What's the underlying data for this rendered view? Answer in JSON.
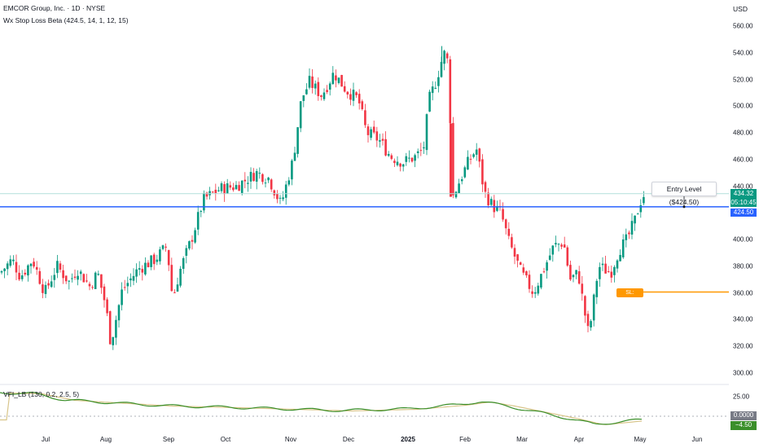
{
  "header": {
    "title": "EMCOR Group, Inc. · 1D · NYSE",
    "indicator": "Wx Stop Loss Beta (424.5, 14, 1, 12, 15)",
    "currency": "USD"
  },
  "price_axis": {
    "ticks": [
      "560.00",
      "540.00",
      "520.00",
      "500.00",
      "480.00",
      "460.00",
      "440.00",
      "400.00",
      "380.00",
      "360.00",
      "340.00",
      "320.00",
      "300.00"
    ]
  },
  "time_axis": {
    "labels": [
      "Jul",
      "Aug",
      "Sep",
      "Oct",
      "Nov",
      "Dec",
      "2025",
      "Feb",
      "Mar",
      "Apr",
      "May",
      "Jun"
    ]
  },
  "price_tags": {
    "last_price": "434.32",
    "countdown": "05:10:45",
    "entry": "424.50",
    "stop_loss": "SL: 360.63"
  },
  "annotation": {
    "entry_label": "Entry  Level ($424.50)"
  },
  "vfi": {
    "label": "VFI_LB (130, 0.2, 2.5, 5)",
    "ticks": [
      "25.00"
    ],
    "value": "0.0000",
    "signal": "−4.50"
  },
  "colors": {
    "up": "#089981",
    "down": "#f23645",
    "entry_line": "#2962ff",
    "stop_line": "#ff9800",
    "last_line": "#b2dfdb",
    "vfi_line": "#3b8f2a",
    "vfi_signal": "#d8c58a"
  },
  "chart_data": {
    "type": "candlestick",
    "ylim": [
      295,
      565
    ],
    "levels": {
      "entry": 424.5,
      "stop_loss": 360.63,
      "last": 434.32
    },
    "key_points": [
      {
        "period": "late Jun",
        "price": 375
      },
      {
        "period": "Aug low",
        "price": 320
      },
      {
        "period": "Sep",
        "price": 352
      },
      {
        "period": "Oct",
        "price": 448
      },
      {
        "period": "Nov high",
        "price": 530
      },
      {
        "period": "Dec",
        "price": 470
      },
      {
        "period": "2025 high",
        "price": 544
      },
      {
        "period": "Jan drop",
        "price": 430
      },
      {
        "period": "Feb",
        "price": 465
      },
      {
        "period": "Mar",
        "price": 360
      },
      {
        "period": "Apr low",
        "price": 322
      },
      {
        "period": "May",
        "price": 434
      }
    ]
  }
}
